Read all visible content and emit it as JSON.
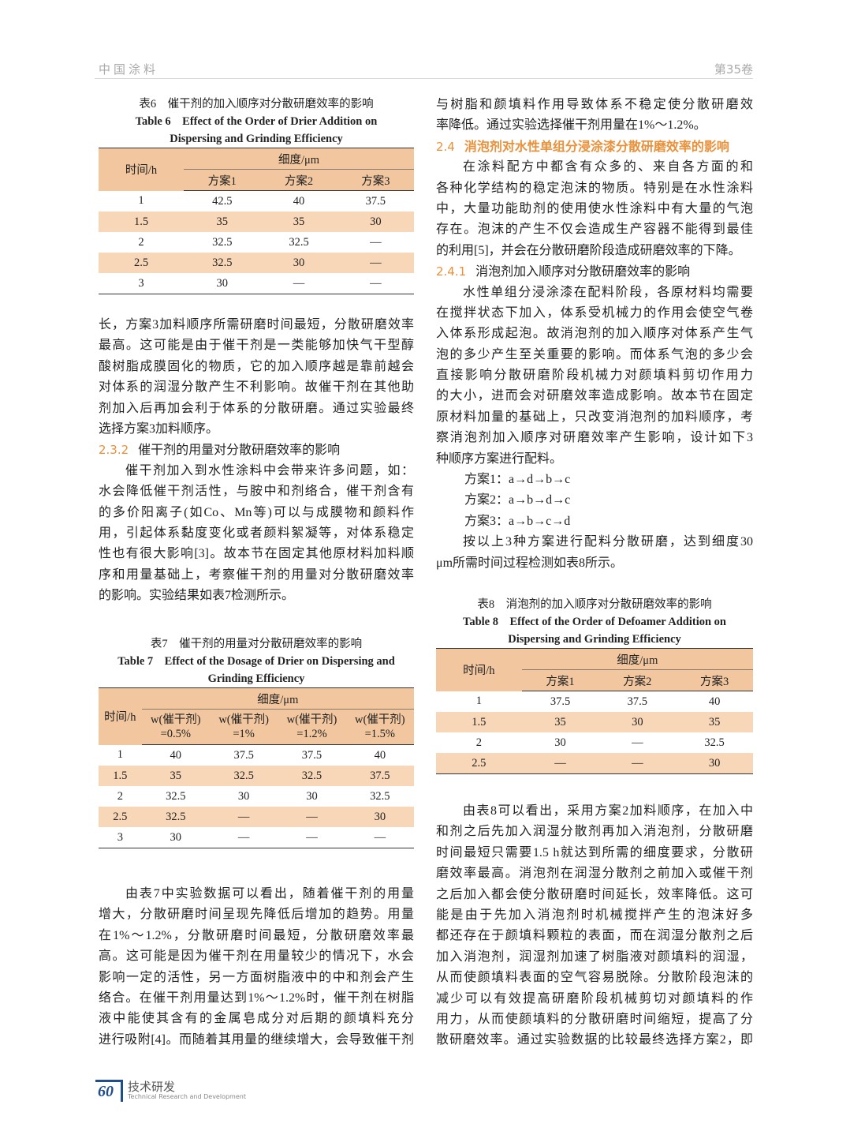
{
  "header": {
    "journal": "中国涂料",
    "volume": "第35卷"
  },
  "footer": {
    "page": "60",
    "section_cn": "技术研发",
    "section_en": "Technical Research and Development"
  },
  "left_column": [
    {
      "type": "table",
      "caption_cn": "表6　催干剂的加入顺序对分散研磨效率的影响",
      "caption_en": [
        "Table 6　Effect of the Order of Drier Addition on",
        "Dispersing and Grinding Efficiency"
      ],
      "row_header": "时间/h",
      "group_header": "细度/μm",
      "columns": [
        "方案1",
        "方案2",
        "方案3"
      ],
      "rows": [
        [
          "1",
          "42.5",
          "40",
          "37.5"
        ],
        [
          "1.5",
          "35",
          "35",
          "30"
        ],
        [
          "2",
          "32.5",
          "32.5",
          "—"
        ],
        [
          "2.5",
          "32.5",
          "30",
          "—"
        ],
        [
          "3",
          "30",
          "—",
          "—"
        ]
      ]
    },
    {
      "type": "text",
      "blocks": [
        {
          "type": "para",
          "continued": true,
          "lines": [
            "长，方案3加料顺序所需研磨时间最短，分散研磨效率",
            "最高。这可能是由于催干剂是一类能够加快气干型醇",
            "酸树脂成膜固化的物质，它的加入顺序越是靠前越会",
            "对体系的润湿分散产生不利影响。故催干剂在其他助",
            "剂加入后再加会利于体系的分散研磨。通过实验最终",
            "选择方案3加料顺序。"
          ]
        },
        {
          "type": "heading",
          "level": 3,
          "number": "2.3.2",
          "title": "催干剂的用量对分散研磨效率的影响"
        },
        {
          "type": "para",
          "continued": false,
          "lines": [
            "催干剂加入到水性涂料中会带来许多问题，如：",
            "水会降低催干剂活性，与胺中和剂络合，催干剂含有",
            "的多价阳离子(如Co、Mn等)可以与成膜物和颜料作",
            "用，引起体系黏度变化或者颜料絮凝等，对体系稳定",
            "性也有很大影响[3]。故本节在固定其他原材料加料顺",
            "序和用量基础上，考察催干剂的用量对分散研磨效率",
            "的影响。实验结果如表7检测所示。"
          ]
        }
      ]
    },
    {
      "type": "table",
      "caption_cn": "表7　催干剂的用量对分散研磨效率的影响",
      "caption_en": [
        "Table 7　Effect of the Dosage of Drier on Dispersing and",
        "Grinding Efficiency"
      ],
      "row_header": "时间/h",
      "group_header": "细度/μm",
      "columns": [
        [
          "w(催干剂)",
          "=0.5%"
        ],
        [
          "w(催干剂)",
          "=1%"
        ],
        [
          "w(催干剂)",
          "=1.2%"
        ],
        [
          "w(催干剂)",
          "=1.5%"
        ]
      ],
      "rows": [
        [
          "1",
          "40",
          "37.5",
          "37.5",
          "40"
        ],
        [
          "1.5",
          "35",
          "32.5",
          "32.5",
          "37.5"
        ],
        [
          "2",
          "32.5",
          "30",
          "30",
          "32.5"
        ],
        [
          "2.5",
          "32.5",
          "—",
          "—",
          "30"
        ],
        [
          "3",
          "30",
          "—",
          "—",
          "—"
        ]
      ]
    },
    {
      "type": "text",
      "blocks": [
        {
          "type": "para",
          "continued": false,
          "lines": [
            "由表7中实验数据可以看出，随着催干剂的用量",
            "增大，分散研磨时间呈现先降低后增加的趋势。用量",
            "在1%～1.2%，分散研磨时间最短，分散研磨效率最",
            "高。这可能是因为催干剂在用量较少的情况下，水会",
            "影响一定的活性，另一方面树脂液中的中和剂会产生",
            "络合。在催干剂用量达到1%～1.2%时，催干剂在树脂",
            "液中能使其含有的金属皂成分对后期的颜填料充分",
            "进行吸附[4]。而随着其用量的继续增大，会导致催干剂"
          ],
          "ends": false
        }
      ]
    }
  ],
  "right_column": [
    {
      "type": "text",
      "blocks": [
        {
          "type": "para",
          "continued": true,
          "lines": [
            "与树脂和颜填料作用导致体系不稳定使分散研磨效",
            "率降低。通过实验选择催干剂用量在1%～1.2%。"
          ]
        },
        {
          "type": "heading",
          "level": 2,
          "number": "2.4",
          "title": "消泡剂对水性单组分浸涂漆分散研磨效率的影响"
        },
        {
          "type": "para",
          "continued": false,
          "lines": [
            "在涂料配方中都含有众多的、来自各方面的和",
            "各种化学结构的稳定泡沫的物质。特别是在水性涂料",
            "中，大量功能助剂的使用使水性涂料中有大量的气泡",
            "存在。泡沫的产生不仅会造成生产容器不能得到最佳",
            "的利用[5]，并会在分散研磨阶段造成研磨效率的下降。"
          ]
        },
        {
          "type": "heading",
          "level": 3,
          "number": "2.4.1",
          "title": "消泡剂加入顺序对分散研磨效率的影响"
        },
        {
          "type": "para",
          "continued": false,
          "lines": [
            "水性单组分浸涂漆在配料阶段，各原材料均需要",
            "在搅拌状态下加入，体系受机械力的作用会使空气卷",
            "入体系形成起泡。故消泡剂的加入顺序对体系产生气",
            "泡的多少产生至关重要的影响。而体系气泡的多少会",
            "直接影响分散研磨阶段机械力对颜填料剪切作用力",
            "的大小，进而会对研磨效率造成影响。故本节在固定",
            "原材料加量的基础上，只改变消泡剂的加料顺序，考",
            "察消泡剂加入顺序对研磨效率产生影响，设计如下3",
            "种顺序方案进行配料。"
          ]
        },
        {
          "type": "scheme",
          "lines": [
            "方案1：a→d→b→c",
            "方案2：a→b→d→c",
            "方案3：a→b→c→d"
          ]
        },
        {
          "type": "para",
          "continued": false,
          "lines": [
            "按以上3种方案进行配料分散研磨，达到细度30",
            "μm所需时间过程检测如表8所示。"
          ]
        }
      ]
    },
    {
      "type": "table",
      "caption_cn": "表8　消泡剂的加入顺序对分散研磨效率的影响",
      "caption_en": [
        "Table 8　Effect of the Order of Defoamer Addition on",
        "Dispersing and Grinding Efficiency"
      ],
      "row_header": "时间/h",
      "group_header": "细度/μm",
      "columns": [
        "方案1",
        "方案2",
        "方案3"
      ],
      "rows": [
        [
          "1",
          "37.5",
          "37.5",
          "40"
        ],
        [
          "1.5",
          "35",
          "30",
          "35"
        ],
        [
          "2",
          "30",
          "—",
          "32.5"
        ],
        [
          "2.5",
          "—",
          "—",
          "30"
        ]
      ]
    },
    {
      "type": "text",
      "blocks": [
        {
          "type": "para",
          "continued": false,
          "ends": false,
          "lines": [
            "由表8可以看出，采用方案2加料顺序，在加入中",
            "和剂之后先加入润湿分散剂再加入消泡剂，分散研磨",
            "时间最短只需要1.5 h就达到所需的细度要求，分散研",
            "磨效率最高。消泡剂在润湿分散剂之前加入或催干剂",
            "之后加入都会使分散研磨时间延长，效率降低。这可",
            "能是由于先加入消泡剂时机械搅拌产生的泡沫好多",
            "都还存在于颜填料颗粒的表面，而在润湿分散剂之后",
            "加入消泡剂，润湿剂加速了树脂液对颜填料的润湿，",
            "从而使颜填料表面的空气容易脱除。分散阶段泡沫的",
            "减少可以有效提高研磨阶段机械剪切对颜填料的作",
            "用力，从而使颜填料的分散研磨时间缩短，提高了分",
            "散研磨效率。通过实验数据的比较最终选择方案2，即"
          ]
        }
      ]
    }
  ],
  "colors": {
    "table_header": "#f2c7a0",
    "table_stripe": "#f8d7b9",
    "heading_accent": "#e8913a",
    "footer_accent": "#1f4e8c"
  }
}
